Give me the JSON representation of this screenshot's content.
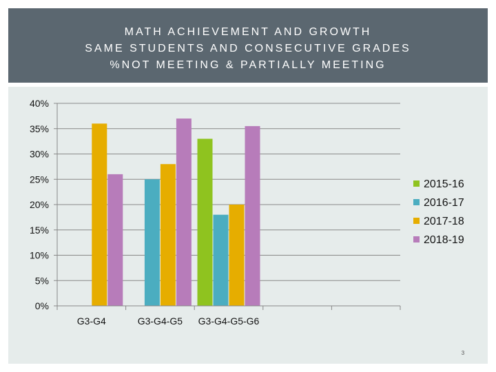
{
  "title_lines": [
    "MATH ACHIEVEMENT AND GROWTH",
    "SAME STUDENTS AND CONSECUTIVE GRADES",
    "%NOT MEETING & PARTIALLY MEETING"
  ],
  "page_number": "3",
  "colors": {
    "header_bg": "#5b6770",
    "panel_bg": "#e6eceb",
    "axis": "#888888"
  },
  "chart_data": {
    "type": "bar",
    "categories": [
      "G3-G4",
      "G3-G4-G5",
      "G3-G4-G5-G6"
    ],
    "series": [
      {
        "name": "2015-16",
        "color": "#8fc31f",
        "values": [
          null,
          null,
          33
        ]
      },
      {
        "name": "2016-17",
        "color": "#4badc0",
        "values": [
          null,
          25,
          18
        ]
      },
      {
        "name": "2017-18",
        "color": "#e6ad00",
        "values": [
          36,
          28,
          20
        ]
      },
      {
        "name": "2018-19",
        "color": "#b77cba",
        "values": [
          26,
          37,
          35.5
        ]
      }
    ],
    "title": "",
    "xlabel": "",
    "ylabel": "",
    "ylim": [
      0,
      40
    ],
    "yticks": [
      0,
      5,
      10,
      15,
      20,
      25,
      30,
      35,
      40
    ],
    "ytick_labels": [
      "0%",
      "5%",
      "10%",
      "15%",
      "20%",
      "25%",
      "30%",
      "35%",
      "40%"
    ],
    "grid": true,
    "legend_position": "right"
  }
}
